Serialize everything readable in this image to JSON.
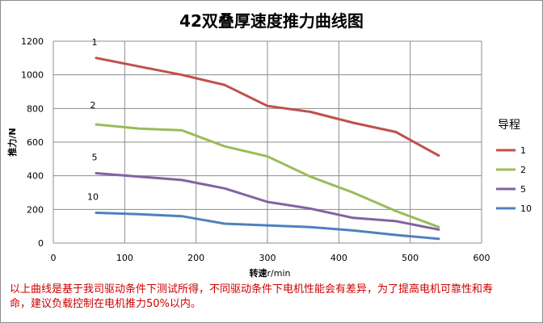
{
  "chart_data": {
    "type": "line",
    "title": "42双叠厚速度推力曲线图",
    "xlabel_bold": "转速",
    "xlabel_unit": "r/min",
    "ylabel": "推力/N",
    "xlim": [
      0,
      600
    ],
    "ylim": [
      0,
      1200
    ],
    "xticks": [
      0,
      100,
      200,
      300,
      400,
      500,
      600
    ],
    "yticks": [
      0,
      200,
      400,
      600,
      800,
      1000,
      1200
    ],
    "grid": true,
    "legend_title": "导程",
    "legend_position": "right",
    "series": [
      {
        "name": "1",
        "label": "1",
        "color": "#c0504d",
        "x": [
          60,
          120,
          180,
          240,
          300,
          360,
          420,
          480,
          540
        ],
        "y": [
          1100,
          1050,
          1000,
          940,
          815,
          780,
          715,
          660,
          520
        ]
      },
      {
        "name": "2",
        "label": "2",
        "color": "#9bbb59",
        "x": [
          60,
          120,
          180,
          240,
          300,
          360,
          420,
          480,
          540
        ],
        "y": [
          705,
          680,
          670,
          575,
          515,
          395,
          300,
          190,
          95
        ]
      },
      {
        "name": "5",
        "label": "5",
        "color": "#8064a2",
        "x": [
          60,
          120,
          180,
          240,
          300,
          360,
          420,
          480,
          540
        ],
        "y": [
          415,
          395,
          375,
          325,
          245,
          205,
          150,
          130,
          80
        ]
      },
      {
        "name": "10",
        "label": "10",
        "color": "#4f81bd",
        "x": [
          60,
          120,
          180,
          240,
          300,
          360,
          420,
          480,
          540
        ],
        "y": [
          180,
          172,
          160,
          115,
          105,
          95,
          75,
          48,
          25
        ]
      }
    ]
  },
  "note_text": "以上曲线是基于我司驱动条件下测试所得，不同驱动条件下电机性能会有差异，为了提高电机可靠性和寿命，建议负载控制在电机推力50%以内。"
}
